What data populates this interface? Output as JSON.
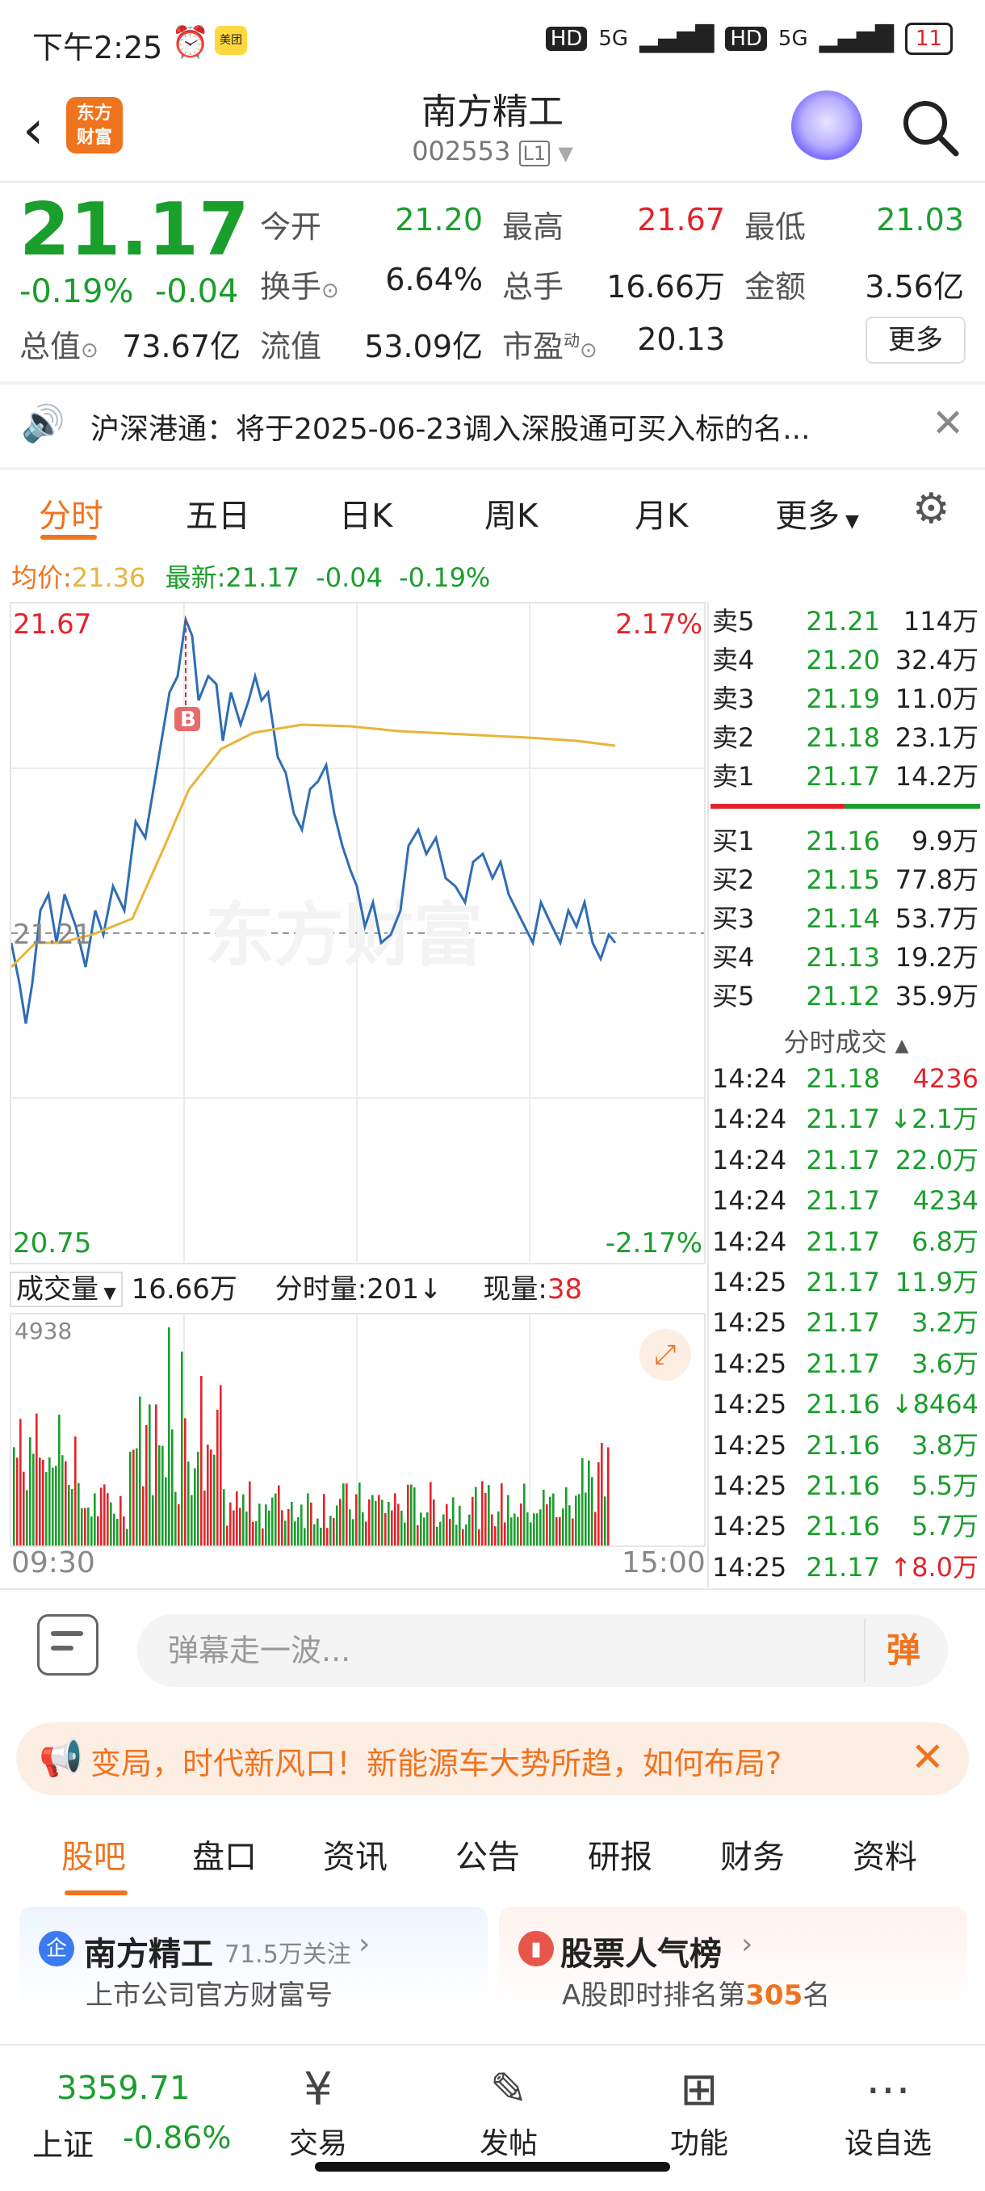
{
  "status_bar": {
    "time": "下午2:25",
    "battery": "11",
    "net1": "5G",
    "net2": "5G",
    "hd": "HD",
    "app_badge": "美团"
  },
  "header": {
    "logo_line1": "东方",
    "logo_line2": "财富",
    "title": "南方精工",
    "code": "002553",
    "level": "L1"
  },
  "quote": {
    "price": "21.17",
    "change_pct": "-0.19%",
    "change": "-0.04",
    "open_label": "今开",
    "open": "21.20",
    "high_label": "最高",
    "high": "21.67",
    "low_label": "最低",
    "low": "21.03",
    "turnover_label": "换手",
    "turnover": "6.64%",
    "volume_label": "总手",
    "volume": "16.66万",
    "amount_label": "金额",
    "amount": "3.56亿",
    "mcap_label": "总值",
    "mcap": "73.67亿",
    "float_label": "流值",
    "float": "53.09亿",
    "pe_label": "市盈",
    "pe_sup": "动",
    "pe": "20.13",
    "more": "更多"
  },
  "notice": {
    "text": "沪深港通：将于2025-06-23调入深股通可买入标的名..."
  },
  "chart_tabs": [
    "分时",
    "五日",
    "日K",
    "周K",
    "月K",
    "更多"
  ],
  "avg_line": {
    "avg_label": "均价:",
    "avg": "21.36",
    "latest_label": "最新:",
    "latest": "21.17",
    "chg": "-0.04",
    "pct": "-0.19%"
  },
  "chart_labels": {
    "top_price": "21.67",
    "top_pct": "2.17%",
    "mid_price": "21.21",
    "bottom_price": "20.75",
    "bottom_pct": "-2.17%",
    "watermark": "东方财富",
    "b_marker": "B"
  },
  "volume_bar": {
    "label": "成交量",
    "total": "16.66万",
    "minute_label": "分时量:",
    "minute": "201",
    "minute_arrow": "↓",
    "now_label": "现量:",
    "now": "38",
    "max": "4938",
    "time_start": "09:30",
    "time_end": "15:00"
  },
  "order_book": {
    "asks": [
      {
        "label": "卖5",
        "price": "21.21",
        "vol": "114万"
      },
      {
        "label": "卖4",
        "price": "21.20",
        "vol": "32.4万"
      },
      {
        "label": "卖3",
        "price": "21.19",
        "vol": "11.0万"
      },
      {
        "label": "卖2",
        "price": "21.18",
        "vol": "23.1万"
      },
      {
        "label": "卖1",
        "price": "21.17",
        "vol": "14.2万"
      }
    ],
    "bids": [
      {
        "label": "买1",
        "price": "21.16",
        "vol": "9.9万"
      },
      {
        "label": "买2",
        "price": "21.15",
        "vol": "77.8万"
      },
      {
        "label": "买3",
        "price": "21.14",
        "vol": "53.7万"
      },
      {
        "label": "买4",
        "price": "21.13",
        "vol": "19.2万"
      },
      {
        "label": "买5",
        "price": "21.12",
        "vol": "35.9万"
      }
    ],
    "ticks_title": "分时成交",
    "ticks": [
      {
        "t": "14:24",
        "p": "21.18",
        "v": "4236",
        "c": "red"
      },
      {
        "t": "14:24",
        "p": "21.17",
        "v": "↓2.1万",
        "c": "green"
      },
      {
        "t": "14:24",
        "p": "21.17",
        "v": "22.0万",
        "c": "green"
      },
      {
        "t": "14:24",
        "p": "21.17",
        "v": "4234",
        "c": "green"
      },
      {
        "t": "14:24",
        "p": "21.17",
        "v": "6.8万",
        "c": "green"
      },
      {
        "t": "14:25",
        "p": "21.17",
        "v": "11.9万",
        "c": "green"
      },
      {
        "t": "14:25",
        "p": "21.17",
        "v": "3.2万",
        "c": "green"
      },
      {
        "t": "14:25",
        "p": "21.17",
        "v": "3.6万",
        "c": "green"
      },
      {
        "t": "14:25",
        "p": "21.16",
        "v": "↓8464",
        "c": "green"
      },
      {
        "t": "14:25",
        "p": "21.16",
        "v": "3.8万",
        "c": "green"
      },
      {
        "t": "14:25",
        "p": "21.16",
        "v": "5.5万",
        "c": "green"
      },
      {
        "t": "14:25",
        "p": "21.16",
        "v": "5.7万",
        "c": "green"
      },
      {
        "t": "14:25",
        "p": "21.17",
        "v": "↑8.0万",
        "c": "red"
      }
    ]
  },
  "danmu": {
    "placeholder": "弹幕走一波...",
    "button": "弹"
  },
  "ad": {
    "text": "变局，时代新风口！新能源车大势所趋，如何布局?"
  },
  "bottom_tabs": [
    "股吧",
    "盘口",
    "资讯",
    "公告",
    "研报",
    "财务",
    "资料"
  ],
  "cards": {
    "left": {
      "badge": "企",
      "title": "南方精工",
      "follow": "71.5万关注",
      "sub": "上市公司官方财富号"
    },
    "right": {
      "title": "股票人气榜",
      "sub_pre": "A股即时排名第",
      "rank": "305",
      "sub_post": "名"
    }
  },
  "dock": {
    "index_value": "3359.71",
    "index_name": "上证",
    "index_pct": "-0.86%",
    "items": [
      {
        "icon": "yen-icon",
        "label": "交易"
      },
      {
        "icon": "edit-icon",
        "label": "发帖"
      },
      {
        "icon": "apps-icon",
        "label": "功能"
      },
      {
        "icon": "more-icon",
        "label": "设自选"
      }
    ]
  },
  "colors": {
    "accent": "#f0731e",
    "up": "#e3242b",
    "down": "#1a9e2c",
    "avg": "#e8b53a",
    "price_line": "#2f6db5"
  }
}
